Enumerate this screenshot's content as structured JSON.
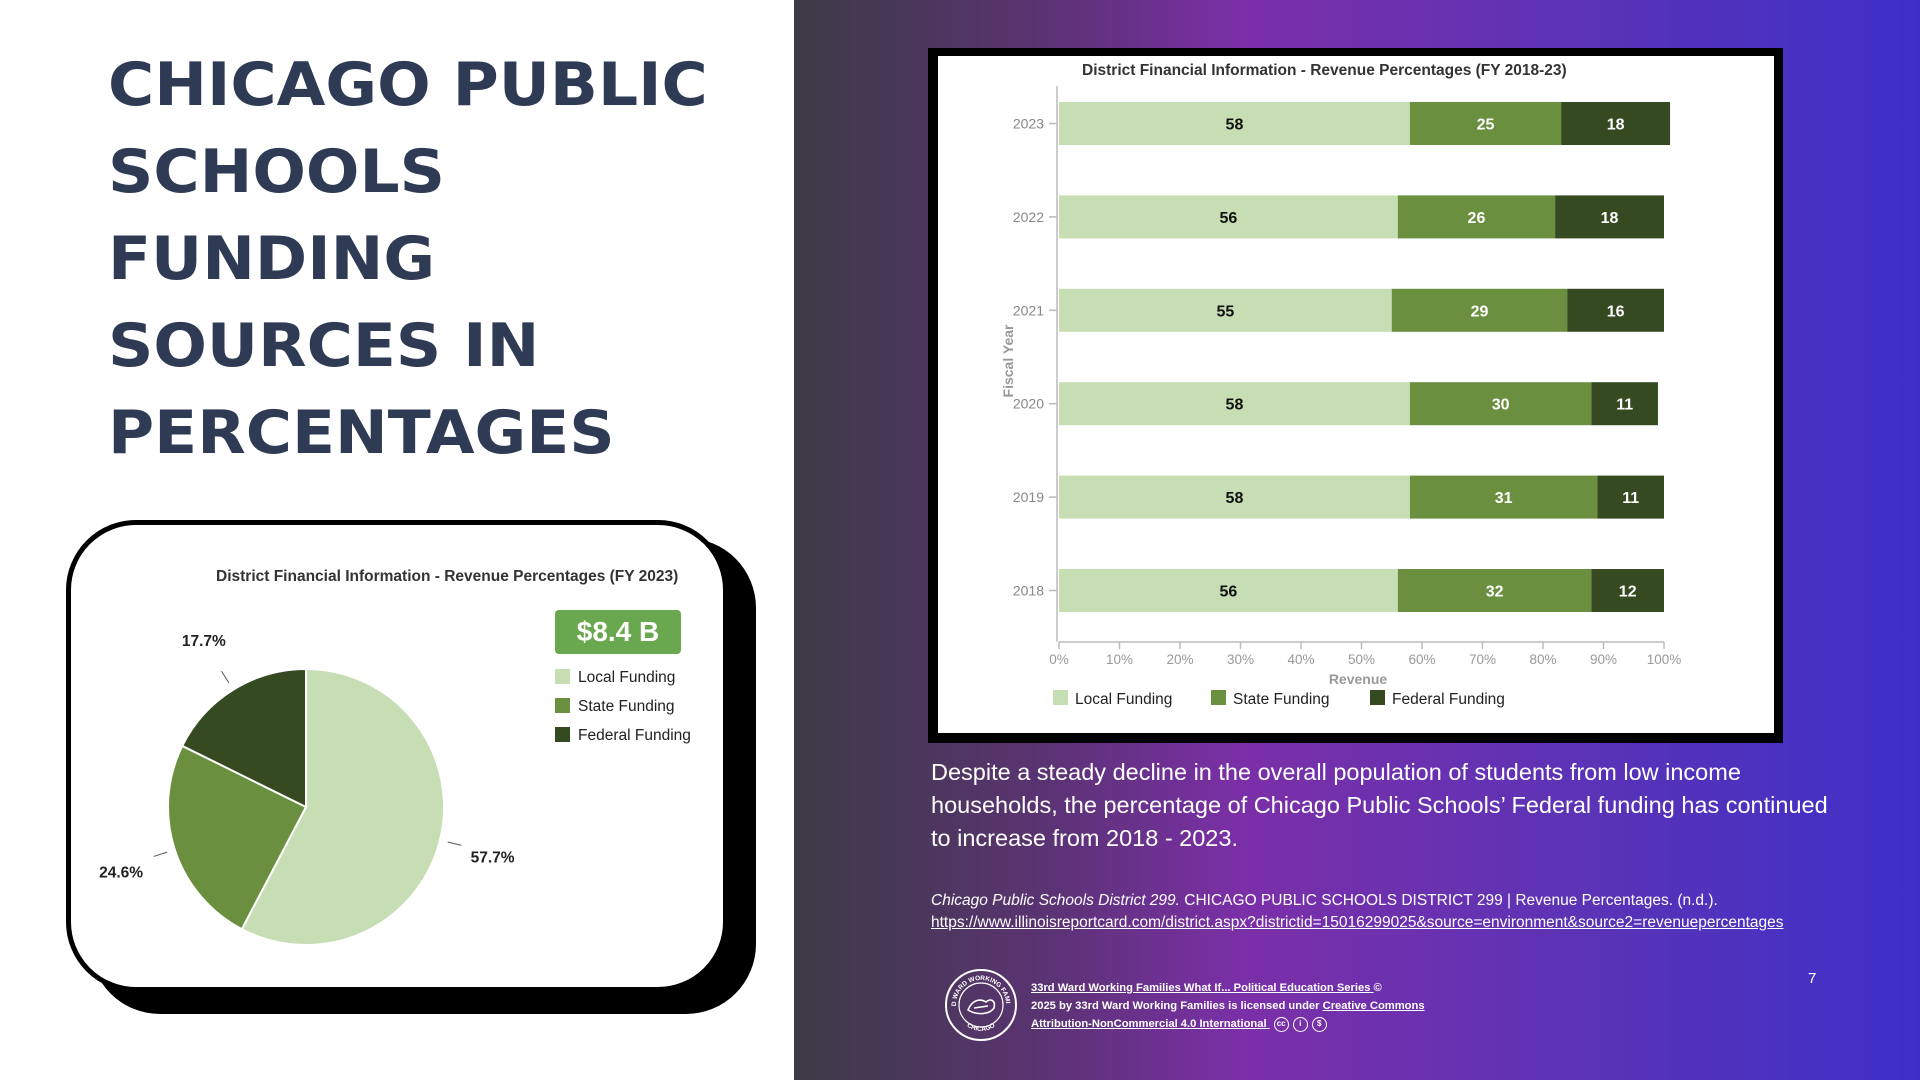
{
  "slide": {
    "title": "CHICAGO PUBLIC SCHOOLS FUNDING SOURCES IN PERCENTAGES",
    "description": "Despite a steady decline in the overall population of students from low income households, the percentage of Chicago Public Schools’ Federal funding has continued to increase from 2018 - 2023.",
    "citation_italic": "Chicago Public Schools District 299.",
    "citation_text": " CHICAGO PUBLIC SCHOOLS DISTRICT 299 | Revenue Percentages. (n.d.).",
    "citation_url": "https://www.illinoisreportcard.com/district.aspx?districtid=15016299025&source=environment&source2=revenuepercentages ",
    "license_part1": "33rd Ward Working Families What If... Political Education Series ",
    "license_copy": "©",
    "license_part2": "2025 by  33rd Ward Working Families is licensed under ",
    "license_link": "Creative Commons Attribution-NonCommercial 4.0 International ",
    "page_number": "7",
    "logo_text_top": "33RD WARD WORKING FAMILIES",
    "logo_text_bottom": "CHICAGO"
  },
  "colors": {
    "local": "#c7deb5",
    "state": "#6a8f3e",
    "federal": "#364a22",
    "title": "#2f3a55",
    "badge": "#6aa84f"
  },
  "chart_data": [
    {
      "type": "pie",
      "title": "District Financial Information - Revenue Percentages (FY 2023)",
      "badge": "$8.4 B",
      "labels": [
        "Local Funding",
        "State Funding",
        "Federal Funding"
      ],
      "values": [
        57.7,
        24.6,
        17.7
      ],
      "value_labels": [
        "57.7%",
        "24.6%",
        "17.7%"
      ],
      "legend": "right"
    },
    {
      "type": "bar",
      "orientation": "horizontal-stacked",
      "title": "District Financial Information - Revenue Percentages (FY 2018-23)",
      "xlabel": "Revenue",
      "ylabel": "Fiscal Year",
      "xlim": [
        0,
        100
      ],
      "xticks": [
        "0%",
        "10%",
        "20%",
        "30%",
        "40%",
        "50%",
        "60%",
        "70%",
        "80%",
        "90%",
        "100%"
      ],
      "categories": [
        "2023",
        "2022",
        "2021",
        "2020",
        "2019",
        "2018"
      ],
      "series": [
        {
          "name": "Local Funding",
          "values": [
            58,
            56,
            55,
            58,
            58,
            56
          ]
        },
        {
          "name": "State Funding",
          "values": [
            25,
            26,
            29,
            30,
            31,
            32
          ]
        },
        {
          "name": "Federal Funding",
          "values": [
            18,
            18,
            16,
            11,
            11,
            12
          ]
        }
      ],
      "legend": "bottom-left"
    }
  ]
}
